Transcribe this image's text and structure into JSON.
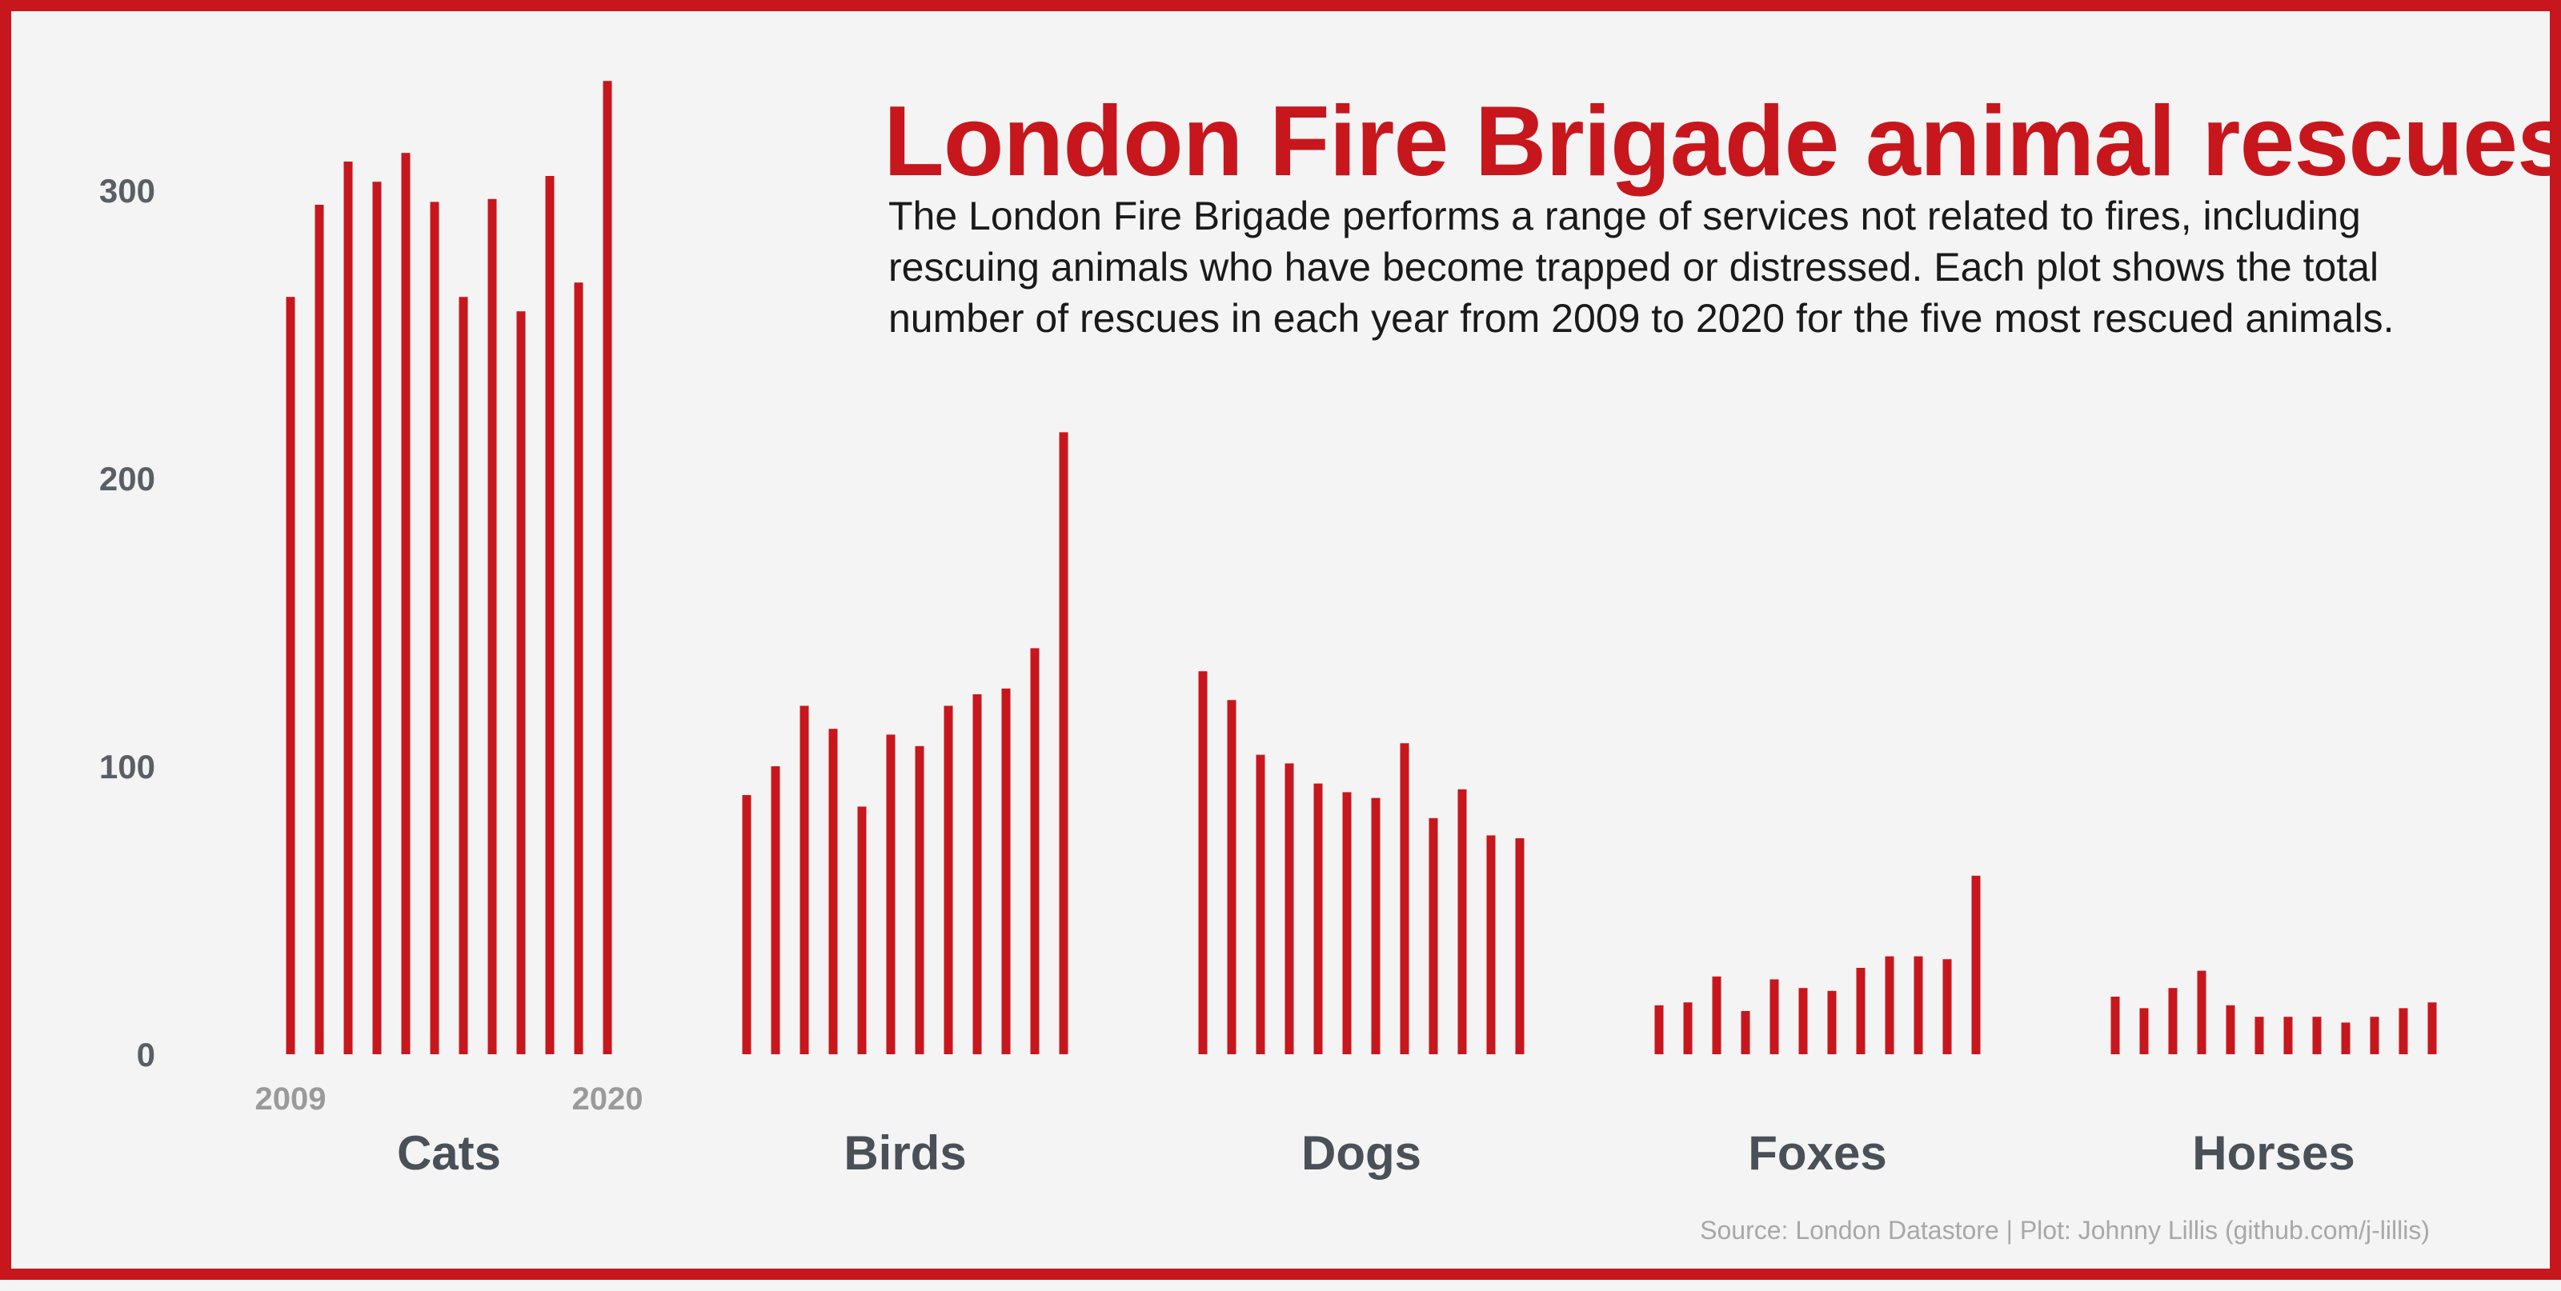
{
  "title": "London Fire Brigade animal rescues",
  "subtitle": "The London Fire Brigade performs a range of services not related to fires, including rescuing animals who have become trapped or distressed. Each plot shows the total number of rescues in each year from 2009 to 2020 for the five most rescued animals.",
  "source": "Source: London Datastore | Plot: Johnny Lillis (github.com/j-lillis)",
  "colors": {
    "bar": "#c8161d",
    "panel_label": "#4a5058",
    "axis_text": "#5a5f66",
    "year_text": "#9a9a9a",
    "border": "#c8161d"
  },
  "chart_data": {
    "type": "bar",
    "x": [
      2009,
      2010,
      2011,
      2012,
      2013,
      2014,
      2015,
      2016,
      2017,
      2018,
      2019,
      2020
    ],
    "x_tick_labels": [
      "2009",
      "2020"
    ],
    "y_ticks": [
      0,
      100,
      200,
      300
    ],
    "ylim": [
      0,
      340
    ],
    "grid": false,
    "panels": [
      {
        "name": "Cats",
        "values": [
          263,
          295,
          310,
          303,
          313,
          296,
          263,
          297,
          258,
          305,
          268,
          338
        ]
      },
      {
        "name": "Birds",
        "values": [
          90,
          100,
          121,
          113,
          86,
          111,
          107,
          121,
          125,
          127,
          141,
          216
        ]
      },
      {
        "name": "Dogs",
        "values": [
          133,
          123,
          104,
          101,
          94,
          91,
          89,
          108,
          82,
          92,
          76,
          75
        ]
      },
      {
        "name": "Foxes",
        "values": [
          17,
          18,
          27,
          15,
          26,
          23,
          22,
          30,
          34,
          34,
          33,
          62
        ]
      },
      {
        "name": "Horses",
        "values": [
          20,
          16,
          23,
          29,
          17,
          13,
          13,
          13,
          11,
          13,
          16,
          18
        ]
      }
    ]
  }
}
